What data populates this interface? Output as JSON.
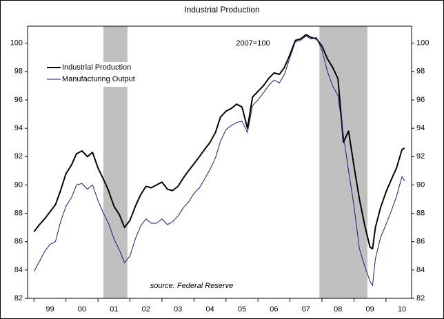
{
  "chart_data": {
    "type": "line",
    "title": "Industrial Production",
    "annotations": [
      "2007=100",
      "source: Federal Reserve"
    ],
    "x": [
      1999.0,
      1999.17,
      1999.33,
      1999.5,
      1999.67,
      1999.83,
      2000.0,
      2000.17,
      2000.33,
      2000.5,
      2000.67,
      2000.83,
      2001.0,
      2001.17,
      2001.33,
      2001.5,
      2001.67,
      2001.83,
      2002.0,
      2002.17,
      2002.33,
      2002.5,
      2002.67,
      2002.83,
      2003.0,
      2003.17,
      2003.33,
      2003.5,
      2003.67,
      2003.83,
      2004.0,
      2004.17,
      2004.33,
      2004.5,
      2004.67,
      2004.83,
      2005.0,
      2005.17,
      2005.33,
      2005.5,
      2005.67,
      2005.83,
      2006.0,
      2006.17,
      2006.33,
      2006.5,
      2006.67,
      2006.83,
      2007.0,
      2007.17,
      2007.33,
      2007.5,
      2007.67,
      2007.83,
      2008.0,
      2008.17,
      2008.33,
      2008.5,
      2008.67,
      2008.83,
      2009.0,
      2009.17,
      2009.33,
      2009.5,
      2009.58,
      2009.67,
      2009.83,
      2010.0,
      2010.17,
      2010.33,
      2010.5,
      2010.58
    ],
    "series": [
      {
        "name": "Industrial Production",
        "color": "#000000",
        "width": 2,
        "values": [
          86.7,
          87.2,
          87.6,
          88.1,
          88.6,
          89.6,
          90.8,
          91.4,
          92.2,
          92.4,
          92.0,
          92.3,
          91.2,
          90.4,
          89.6,
          88.5,
          87.9,
          87.0,
          87.5,
          88.5,
          89.3,
          89.9,
          89.8,
          90.0,
          90.2,
          89.7,
          89.6,
          89.9,
          90.5,
          91.0,
          91.5,
          92.0,
          92.5,
          93.0,
          93.7,
          94.8,
          95.2,
          95.4,
          95.7,
          95.5,
          94.0,
          96.2,
          96.6,
          97.0,
          97.5,
          97.9,
          97.8,
          98.3,
          99.2,
          100.2,
          100.3,
          100.6,
          100.4,
          100.3,
          99.8,
          98.9,
          98.3,
          97.5,
          93.0,
          93.8,
          91.3,
          89.0,
          87.2,
          85.6,
          85.5,
          87.0,
          88.4,
          89.5,
          90.4,
          91.2,
          92.5,
          92.6
        ]
      },
      {
        "name": "Manufacturing Output",
        "color": "#1a1a80",
        "width": 1,
        "values": [
          83.9,
          84.6,
          85.3,
          85.8,
          86.0,
          87.4,
          88.5,
          89.1,
          90.0,
          90.1,
          89.7,
          90.0,
          88.9,
          88.0,
          87.3,
          86.2,
          85.4,
          84.5,
          85.0,
          86.2,
          87.1,
          87.6,
          87.3,
          87.3,
          87.6,
          87.2,
          87.4,
          87.8,
          88.4,
          88.8,
          89.4,
          89.8,
          90.4,
          91.1,
          91.9,
          93.1,
          93.9,
          94.2,
          94.4,
          94.5,
          93.7,
          95.6,
          96.0,
          96.5,
          97.0,
          97.4,
          97.2,
          97.8,
          99.0,
          100.1,
          100.2,
          100.5,
          100.3,
          100.4,
          99.5,
          98.0,
          97.0,
          96.3,
          93.5,
          91.0,
          88.5,
          85.5,
          84.3,
          83.2,
          82.9,
          84.8,
          86.3,
          87.2,
          88.2,
          89.2,
          90.6,
          90.3
        ]
      }
    ],
    "shaded_periods": [
      [
        2001.17,
        2001.92
      ],
      [
        2007.92,
        2009.42
      ]
    ],
    "xlim": [
      1998.8,
      2010.8
    ],
    "xticks": [
      {
        "value": 1999.5,
        "label": "99"
      },
      {
        "value": 2000.5,
        "label": "00"
      },
      {
        "value": 2001.5,
        "label": "01"
      },
      {
        "value": 2002.5,
        "label": "02"
      },
      {
        "value": 2003.5,
        "label": "03"
      },
      {
        "value": 2004.5,
        "label": "04"
      },
      {
        "value": 2005.5,
        "label": "05"
      },
      {
        "value": 2006.5,
        "label": "06"
      },
      {
        "value": 2007.5,
        "label": "07"
      },
      {
        "value": 2008.5,
        "label": "08"
      },
      {
        "value": 2009.5,
        "label": "09"
      },
      {
        "value": 2010.5,
        "label": "10"
      }
    ],
    "ylim": [
      82,
      101.2
    ],
    "yticks": [
      82,
      84,
      86,
      88,
      90,
      92,
      94,
      96,
      98,
      100
    ],
    "y2lim": [
      82,
      101.2
    ],
    "y2ticks": [
      82,
      84,
      86,
      88,
      90,
      92,
      94,
      96,
      98,
      100
    ],
    "legend": "upper left",
    "shade_color": "#c0c0c0"
  }
}
